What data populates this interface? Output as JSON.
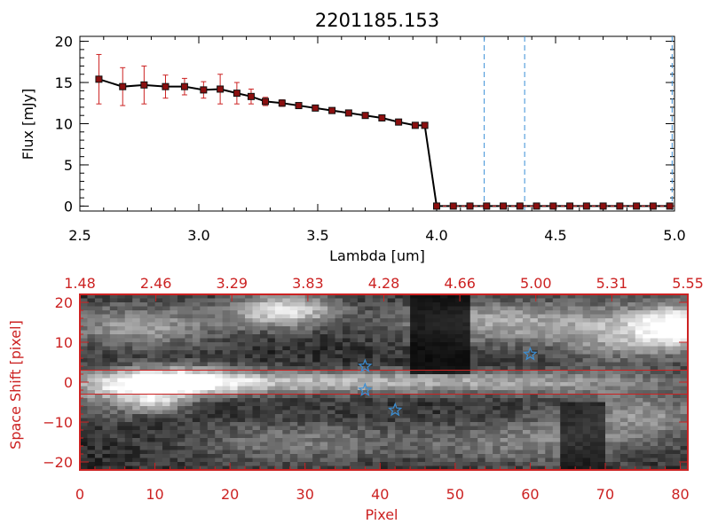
{
  "title": "2201185.153",
  "colors": {
    "axis": "#000000",
    "red": "#cc2222",
    "blue": "#3a8fd6",
    "marker": "#8b0f0f"
  },
  "chart_data": [
    {
      "type": "line",
      "title": "2201185.153",
      "xlabel": "Lambda [um]",
      "ylabel": "Flux [mJy]",
      "xlim": [
        2.5,
        5.0
      ],
      "ylim": [
        -0.6,
        20.6
      ],
      "xticks": [
        2.5,
        3.0,
        3.5,
        4.0,
        4.5,
        5.0
      ],
      "xtick_labels": [
        "2.5",
        "3.0",
        "3.5",
        "4.0",
        "4.5",
        "5.0"
      ],
      "yticks": [
        0,
        5,
        10,
        15,
        20
      ],
      "ytick_labels": [
        "0",
        "5",
        "10",
        "15",
        "20"
      ],
      "series": [
        {
          "name": "flux",
          "x": [
            2.58,
            2.68,
            2.77,
            2.86,
            2.94,
            3.02,
            3.09,
            3.16,
            3.22,
            3.28,
            3.35,
            3.42,
            3.49,
            3.56,
            3.63,
            3.7,
            3.77,
            3.84,
            3.91,
            3.95
          ],
          "values": [
            15.4,
            14.5,
            14.7,
            14.5,
            14.5,
            14.1,
            14.2,
            13.7,
            13.3,
            12.7,
            12.5,
            12.2,
            11.9,
            11.6,
            11.3,
            11.0,
            10.7,
            10.2,
            9.8,
            9.8
          ],
          "errors": [
            3.0,
            2.3,
            2.3,
            1.4,
            1.0,
            1.0,
            1.8,
            1.3,
            0.9,
            0.5,
            0.4,
            0.3,
            0.3,
            0.2,
            0.2,
            0.2,
            0.2,
            0.2,
            0.2,
            0.2
          ]
        },
        {
          "name": "zero",
          "x": [
            4.0,
            4.07,
            4.14,
            4.21,
            4.28,
            4.35,
            4.42,
            4.49,
            4.56,
            4.63,
            4.7,
            4.77,
            4.84,
            4.91,
            4.98
          ],
          "values": [
            0,
            0,
            0,
            0,
            0,
            0,
            0,
            0,
            0,
            0,
            0,
            0,
            0,
            0,
            0
          ]
        }
      ],
      "vlines": [
        4.2,
        4.37,
        4.99
      ]
    },
    {
      "type": "heatmap",
      "xlabel": "Pixel",
      "ylabel": "Space Shift [pixel]",
      "xlim": [
        0,
        81
      ],
      "ylim": [
        -22,
        22
      ],
      "xticks": [
        0,
        10,
        20,
        30,
        40,
        50,
        60,
        70,
        80
      ],
      "xtick_labels": [
        "0",
        "10",
        "20",
        "30",
        "40",
        "50",
        "60",
        "70",
        "80"
      ],
      "yticks": [
        -20,
        -10,
        0,
        10,
        20
      ],
      "ytick_labels": [
        "−20",
        "−10",
        "0",
        "10",
        "20"
      ],
      "top_tick_labels": [
        "1.48",
        "2.46",
        "3.29",
        "3.83",
        "4.28",
        "4.66",
        "5.00",
        "5.31",
        "5.55"
      ],
      "hlines": [
        3,
        -3
      ],
      "stars": [
        {
          "x": 38,
          "y": 4
        },
        {
          "x": 38,
          "y": -2
        },
        {
          "x": 42,
          "y": -7
        },
        {
          "x": 60,
          "y": 7
        }
      ]
    }
  ]
}
